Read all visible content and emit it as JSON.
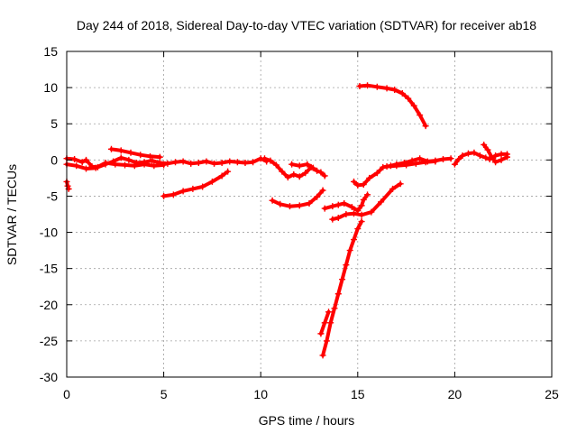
{
  "chart_data": {
    "type": "scatter",
    "title": "Day 244 of 2018, Sidereal Day-to-day VTEC variation (SDTVAR) for receiver ab18",
    "xlabel": "GPS time / hours",
    "ylabel": "SDTVAR / TECUs",
    "xlim": [
      0,
      25
    ],
    "ylim": [
      -30,
      15
    ],
    "xticks": [
      "0",
      "5",
      "10",
      "15",
      "20",
      "25"
    ],
    "yticks": [
      "15",
      "10",
      "5",
      "0",
      "-5",
      "-10",
      "-15",
      "-20",
      "-25",
      "-30"
    ],
    "grid": true,
    "marker": "plus",
    "color": "#ff0000",
    "series": [
      {
        "points": [
          [
            0.0,
            -3.0
          ],
          [
            0.05,
            -3.6
          ],
          [
            0.1,
            -4.0
          ]
        ]
      },
      {
        "points": [
          [
            0.0,
            0.2
          ],
          [
            0.4,
            0.1
          ],
          [
            0.8,
            -0.3
          ],
          [
            1.0,
            0.0
          ],
          [
            1.3,
            -0.9
          ],
          [
            1.6,
            -1.0
          ],
          [
            2.0,
            -0.6
          ],
          [
            2.4,
            -0.2
          ],
          [
            2.8,
            0.3
          ],
          [
            3.2,
            0.0
          ],
          [
            3.6,
            -0.4
          ],
          [
            4.0,
            -0.3
          ],
          [
            4.4,
            -0.1
          ],
          [
            4.8,
            -0.4
          ],
          [
            5.2,
            -0.5
          ],
          [
            5.6,
            -0.3
          ],
          [
            6.0,
            -0.2
          ],
          [
            6.4,
            -0.5
          ],
          [
            6.8,
            -0.4
          ],
          [
            7.2,
            -0.2
          ],
          [
            7.6,
            -0.5
          ],
          [
            8.0,
            -0.4
          ],
          [
            8.4,
            -0.2
          ],
          [
            8.8,
            -0.3
          ],
          [
            9.2,
            -0.4
          ],
          [
            9.6,
            -0.3
          ],
          [
            10.0,
            0.2
          ],
          [
            10.3,
            -0.2
          ]
        ]
      },
      {
        "points": [
          [
            0.0,
            -0.6
          ],
          [
            0.5,
            -0.8
          ],
          [
            1.0,
            -1.2
          ],
          [
            1.5,
            -1.1
          ],
          [
            2.0,
            -0.4
          ],
          [
            2.5,
            -0.6
          ],
          [
            3.0,
            -0.7
          ],
          [
            3.5,
            -0.8
          ],
          [
            4.0,
            -0.6
          ],
          [
            4.5,
            -0.8
          ],
          [
            5.0,
            -0.7
          ]
        ]
      },
      {
        "points": [
          [
            2.3,
            1.5
          ],
          [
            2.8,
            1.3
          ],
          [
            3.3,
            1.0
          ],
          [
            3.8,
            0.7
          ],
          [
            4.3,
            0.5
          ],
          [
            4.8,
            0.4
          ]
        ]
      },
      {
        "points": [
          [
            5.0,
            -5.0
          ],
          [
            5.5,
            -4.8
          ],
          [
            6.0,
            -4.3
          ],
          [
            6.5,
            -4.0
          ],
          [
            7.0,
            -3.7
          ],
          [
            7.5,
            -3.0
          ],
          [
            8.0,
            -2.2
          ],
          [
            8.3,
            -1.6
          ]
        ]
      },
      {
        "points": [
          [
            10.2,
            0.2
          ],
          [
            10.5,
            -0.1
          ],
          [
            10.8,
            -0.7
          ],
          [
            11.1,
            -1.6
          ],
          [
            11.4,
            -2.4
          ],
          [
            11.7,
            -2.0
          ],
          [
            12.0,
            -2.3
          ],
          [
            12.3,
            -1.8
          ],
          [
            12.6,
            -1.0
          ],
          [
            12.9,
            -1.5
          ],
          [
            13.1,
            -1.7
          ],
          [
            13.3,
            -2.2
          ]
        ]
      },
      {
        "points": [
          [
            11.6,
            -0.6
          ],
          [
            12.0,
            -0.8
          ],
          [
            12.4,
            -0.6
          ],
          [
            12.7,
            -1.1
          ]
        ]
      },
      {
        "points": [
          [
            10.6,
            -5.6
          ],
          [
            11.0,
            -6.1
          ],
          [
            11.5,
            -6.4
          ],
          [
            12.0,
            -6.3
          ],
          [
            12.5,
            -6.0
          ],
          [
            12.9,
            -5.1
          ],
          [
            13.2,
            -4.2
          ]
        ]
      },
      {
        "points": [
          [
            13.2,
            -27.0
          ],
          [
            13.4,
            -25.0
          ],
          [
            13.6,
            -22.5
          ],
          [
            13.8,
            -20.5
          ],
          [
            14.0,
            -18.5
          ],
          [
            14.2,
            -16.5
          ],
          [
            14.4,
            -14.5
          ],
          [
            14.6,
            -12.5
          ],
          [
            14.8,
            -11.0
          ],
          [
            15.0,
            -9.5
          ],
          [
            15.2,
            -8.5
          ]
        ]
      },
      {
        "points": [
          [
            13.1,
            -24.0
          ],
          [
            13.3,
            -22.5
          ],
          [
            13.5,
            -21.0
          ]
        ]
      },
      {
        "points": [
          [
            13.3,
            -6.7
          ],
          [
            13.7,
            -6.4
          ],
          [
            14.0,
            -6.2
          ],
          [
            14.3,
            -6.0
          ],
          [
            14.7,
            -6.5
          ],
          [
            15.0,
            -7.0
          ],
          [
            15.2,
            -6.3
          ],
          [
            15.3,
            -5.5
          ],
          [
            15.5,
            -4.8
          ]
        ]
      },
      {
        "points": [
          [
            13.7,
            -8.2
          ],
          [
            14.0,
            -8.0
          ],
          [
            14.4,
            -7.5
          ],
          [
            14.8,
            -7.4
          ],
          [
            15.2,
            -7.6
          ],
          [
            15.7,
            -7.2
          ],
          [
            16.2,
            -5.8
          ],
          [
            16.8,
            -4.0
          ],
          [
            17.2,
            -3.3
          ]
        ]
      },
      {
        "points": [
          [
            14.8,
            -3.0
          ],
          [
            15.0,
            -3.5
          ],
          [
            15.3,
            -3.4
          ],
          [
            15.6,
            -2.5
          ],
          [
            16.0,
            -1.8
          ],
          [
            16.3,
            -1.0
          ],
          [
            16.7,
            -0.8
          ],
          [
            17.0,
            -0.6
          ],
          [
            17.4,
            -0.4
          ],
          [
            17.8,
            -0.1
          ],
          [
            18.2,
            0.2
          ],
          [
            18.6,
            -0.2
          ],
          [
            19.0,
            -0.1
          ],
          [
            19.4,
            0.1
          ],
          [
            19.8,
            0.2
          ]
        ]
      },
      {
        "points": [
          [
            16.5,
            -0.9
          ],
          [
            17.0,
            -0.8
          ],
          [
            17.5,
            -0.7
          ],
          [
            18.0,
            -0.5
          ],
          [
            18.5,
            -0.3
          ],
          [
            19.0,
            -0.2
          ]
        ]
      },
      {
        "points": [
          [
            15.1,
            10.2
          ],
          [
            15.5,
            10.3
          ],
          [
            16.0,
            10.1
          ],
          [
            16.5,
            9.9
          ],
          [
            16.9,
            9.7
          ],
          [
            17.3,
            9.2
          ],
          [
            17.6,
            8.5
          ],
          [
            17.9,
            7.5
          ],
          [
            18.2,
            6.2
          ],
          [
            18.5,
            4.7
          ]
        ]
      },
      {
        "points": [
          [
            20.0,
            -0.6
          ],
          [
            20.2,
            0.1
          ],
          [
            20.4,
            0.6
          ],
          [
            20.7,
            0.9
          ],
          [
            21.0,
            1.0
          ],
          [
            21.3,
            0.6
          ],
          [
            21.6,
            0.3
          ],
          [
            21.8,
            0.1
          ],
          [
            22.1,
            0.6
          ],
          [
            22.4,
            0.8
          ],
          [
            22.7,
            0.8
          ]
        ]
      },
      {
        "points": [
          [
            21.5,
            2.1
          ],
          [
            21.7,
            1.4
          ],
          [
            21.9,
            0.4
          ],
          [
            22.1,
            -0.3
          ],
          [
            22.4,
            0.0
          ],
          [
            22.7,
            0.4
          ]
        ]
      }
    ]
  }
}
